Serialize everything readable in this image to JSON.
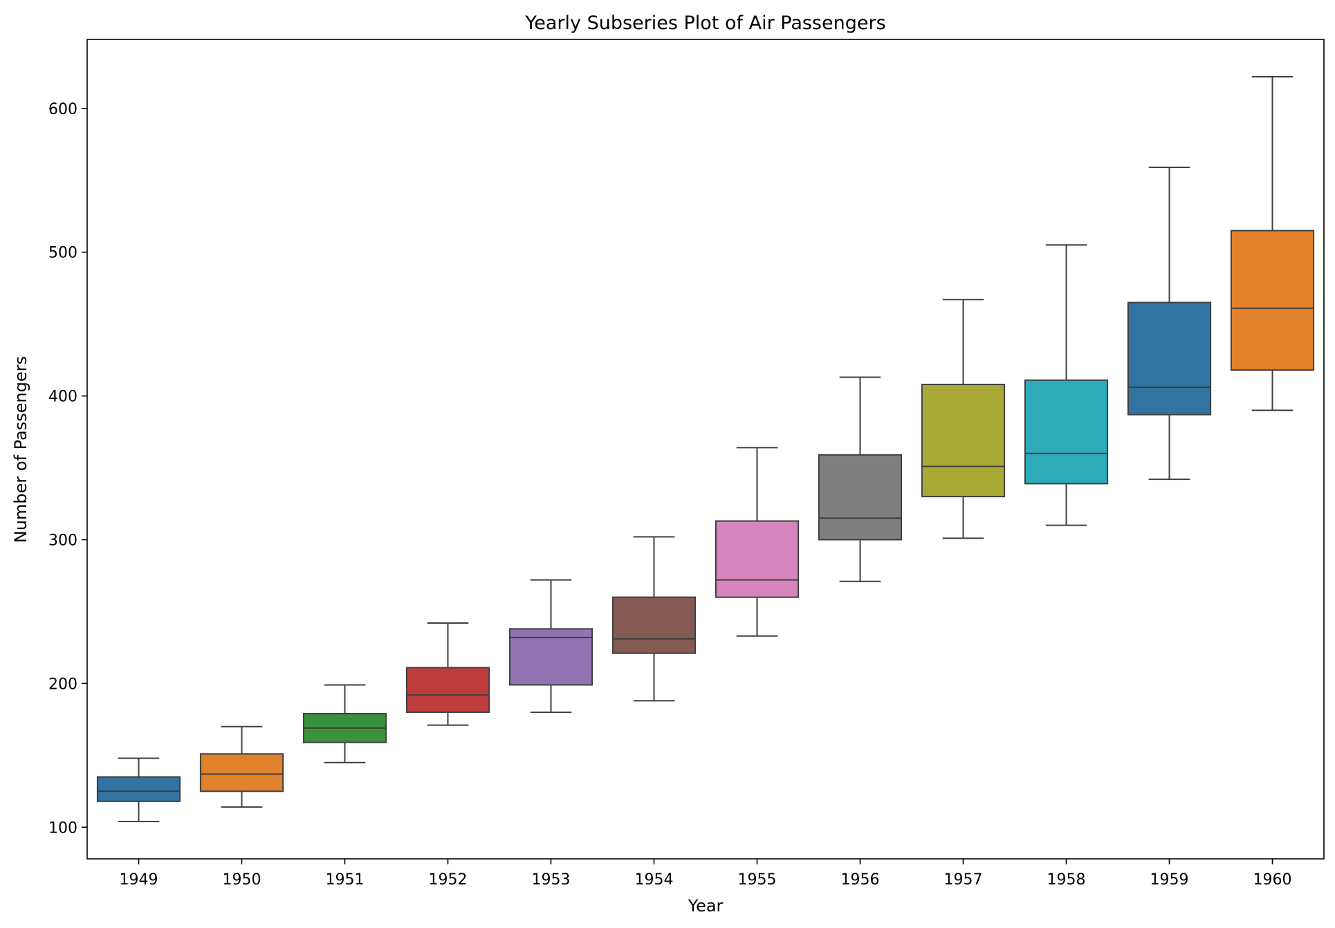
{
  "chart_data": {
    "type": "box",
    "title": "Yearly Subseries Plot of Air Passengers",
    "xlabel": "Year",
    "ylabel": "Number of Passengers",
    "ylim": [
      78,
      648
    ],
    "yticks": [
      100,
      200,
      300,
      400,
      500,
      600
    ],
    "categories": [
      "1949",
      "1950",
      "1951",
      "1952",
      "1953",
      "1954",
      "1955",
      "1956",
      "1957",
      "1958",
      "1959",
      "1960"
    ],
    "boxes": [
      {
        "category": "1949",
        "min": 104,
        "q1": 118,
        "median": 125,
        "q3": 135,
        "max": 148,
        "color": "#3274a1"
      },
      {
        "category": "1950",
        "min": 114,
        "q1": 125,
        "median": 137,
        "q3": 151,
        "max": 170,
        "color": "#e1812c"
      },
      {
        "category": "1951",
        "min": 145,
        "q1": 159,
        "median": 169,
        "q3": 179,
        "max": 199,
        "color": "#3a923a"
      },
      {
        "category": "1952",
        "min": 171,
        "q1": 180,
        "median": 192,
        "q3": 211,
        "max": 242,
        "color": "#c03d3e"
      },
      {
        "category": "1953",
        "min": 180,
        "q1": 199,
        "median": 232,
        "q3": 238,
        "max": 272,
        "color": "#9372b2"
      },
      {
        "category": "1954",
        "min": 188,
        "q1": 221,
        "median": 231,
        "q3": 260,
        "max": 302,
        "color": "#845b53"
      },
      {
        "category": "1955",
        "min": 233,
        "q1": 260,
        "median": 272,
        "q3": 313,
        "max": 364,
        "color": "#d684bd"
      },
      {
        "category": "1956",
        "min": 271,
        "q1": 300,
        "median": 315,
        "q3": 359,
        "max": 413,
        "color": "#7f7f7f"
      },
      {
        "category": "1957",
        "min": 301,
        "q1": 330,
        "median": 351,
        "q3": 408,
        "max": 467,
        "color": "#a9aa35"
      },
      {
        "category": "1958",
        "min": 310,
        "q1": 339,
        "median": 360,
        "q3": 411,
        "max": 505,
        "color": "#2eabb8"
      },
      {
        "category": "1959",
        "min": 342,
        "q1": 387,
        "median": 406,
        "q3": 465,
        "max": 559,
        "color": "#3274a1"
      },
      {
        "category": "1960",
        "min": 390,
        "q1": 418,
        "median": 461,
        "q3": 515,
        "max": 622,
        "color": "#e1812c"
      }
    ],
    "grid": false,
    "legend": "none"
  }
}
